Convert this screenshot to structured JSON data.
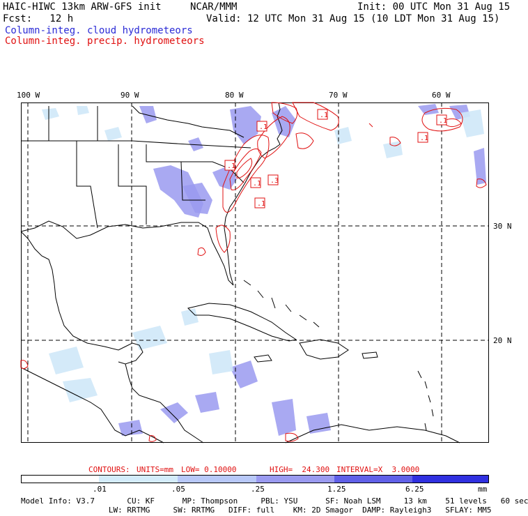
{
  "header": {
    "title_left": "HAIC-HIWC 13km ARW-GFS init",
    "org": "NCAR/MMM",
    "init": "Init: 00 UTC Mon 31 Aug 15",
    "fcst": "Fcst:   12 h",
    "valid": "Valid: 12 UTC Mon 31 Aug 15 (10 LDT Mon 31 Aug 15)",
    "field1": "Column-integ. cloud hydrometeors",
    "field2": "Column-integ. precip. hydrometeors"
  },
  "map": {
    "lon_labels": [
      "100 W",
      "90 W",
      "80 W",
      "70 W",
      "60 W"
    ],
    "lat_labels": [
      "30 N",
      "20 N"
    ],
    "contour_labels": [
      ".1",
      ".1",
      ".1",
      ".1",
      ".1",
      ".3",
      ".1",
      ".1"
    ],
    "colors": {
      "coast": "#000000",
      "grid": "#000000",
      "cloud": "#8a8af0",
      "cloud_light": "#cfe8f8",
      "precip": "#e01010"
    }
  },
  "contours_info": {
    "label": "CONTOURS:",
    "units": "UNITS=mm",
    "low": "LOW= 0.10000",
    "high": "HIGH=  24.300",
    "interval": "INTERVAL=X  3.0000"
  },
  "colorbar": {
    "ticks": [
      ".01",
      ".05",
      ".25",
      "1.25",
      "6.25"
    ],
    "unit": "mm",
    "colors": [
      "#ffffff",
      "#d4ecfa",
      "#b8c8f8",
      "#9a9af0",
      "#6060e8",
      "#3030e0",
      "#0000e0"
    ]
  },
  "model_info": {
    "line1": "Model Info: V3.7       CU: KF      MP: Thompson     PBL: YSU      SF: Noah LSM     13 km    51 levels   60 sec",
    "line2": "                   LW: RRTMG     SW: RRTMG   DIFF: full    KM: 2D Smagor  DAMP: Rayleigh3   SFLAY: MM5"
  }
}
